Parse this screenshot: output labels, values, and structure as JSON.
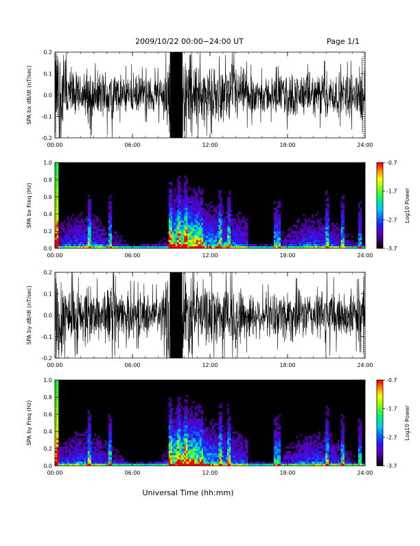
{
  "header": {
    "title": "2009/10/22  00:00−24:00 UT",
    "page": "Page 1/1"
  },
  "footer": {
    "xlabel": "Universal Time (hh:mm)"
  },
  "colors": {
    "trace": "#000000",
    "background": "#ffffff",
    "spectrogram_floor": "#000000",
    "colormap": [
      "#000000",
      "#3a0070",
      "#5a00c8",
      "#2020ff",
      "#0070ff",
      "#00c8ff",
      "#00e8a0",
      "#30ff30",
      "#a0ff00",
      "#ffff00",
      "#ff9000",
      "#ff0000"
    ]
  },
  "chart_data": [
    {
      "type": "line",
      "title": "",
      "ylabel": "SPA bx dB/dt (nT/sec)",
      "xlabel": "",
      "xlim": [
        "00:00",
        "24:00"
      ],
      "ylim": [
        -0.2,
        0.2
      ],
      "x_ticks": [
        "00:00",
        "06:00",
        "12:00",
        "18:00",
        "24:00"
      ],
      "y_ticks": [
        "-0.2",
        "-0.1",
        "0.0",
        "0.1",
        "0.2"
      ],
      "series": [
        {
          "x_hours": [
            0,
            0.5,
            1,
            2,
            2.7,
            3,
            4,
            4.3,
            5,
            6,
            7,
            8,
            8.5,
            8.9,
            9.5,
            10,
            10.5,
            11,
            12,
            13,
            14,
            15,
            16,
            17,
            17.5,
            18,
            19,
            20,
            21,
            22,
            23,
            24
          ],
          "amplitude": [
            0.2,
            0.2,
            0.12,
            0.07,
            0.12,
            0.08,
            0.1,
            0.12,
            0.07,
            0.08,
            0.07,
            0.07,
            0.1,
            0.2,
            0.2,
            0.2,
            0.18,
            0.12,
            0.1,
            0.1,
            0.12,
            0.08,
            0.07,
            0.07,
            0.08,
            0.09,
            0.08,
            0.08,
            0.09,
            0.08,
            0.09,
            0.1
          ]
        }
      ]
    },
    {
      "type": "heatmap",
      "title": "",
      "ylabel": "SPA bx Freq (Hz)",
      "xlabel": "",
      "xlim": [
        "00:00",
        "24:00"
      ],
      "ylim": [
        0.0,
        1.0
      ],
      "x_ticks": [
        "00:00",
        "06:00",
        "12:00",
        "18:00",
        "24:00"
      ],
      "y_ticks": [
        "0.0",
        "0.2",
        "0.4",
        "0.6",
        "0.8",
        "1.0"
      ],
      "colorbar_label": "Log10 Power",
      "colorbar_ticks": [
        "-0.7",
        "-1.7",
        "-2.7",
        "-3.7"
      ],
      "clim": [
        -3.7,
        -0.7
      ],
      "bursts_hours": [
        0.1,
        0.2,
        2.7,
        4.3,
        8.9,
        9.6,
        10.1,
        12.8,
        13.5,
        17.1,
        17.3,
        21.1,
        22.3,
        23.6
      ]
    },
    {
      "type": "line",
      "title": "",
      "ylabel": "SPA by dB/dt (nT/sec)",
      "xlabel": "",
      "xlim": [
        "00:00",
        "24:00"
      ],
      "ylim": [
        -0.2,
        0.2
      ],
      "x_ticks": [
        "00:00",
        "06:00",
        "12:00",
        "18:00",
        "24:00"
      ],
      "y_ticks": [
        "-0.2",
        "-0.1",
        "0.0",
        "0.1",
        "0.2"
      ],
      "series": [
        {
          "x_hours": [
            0,
            0.5,
            1,
            2,
            2.7,
            3,
            4,
            4.3,
            5,
            6,
            7,
            8,
            8.5,
            8.9,
            9.5,
            10,
            10.5,
            11,
            12,
            13,
            14,
            15,
            16,
            17,
            17.5,
            18,
            19,
            20,
            21,
            22,
            23,
            24
          ],
          "amplitude": [
            0.2,
            0.2,
            0.13,
            0.09,
            0.13,
            0.09,
            0.11,
            0.13,
            0.08,
            0.09,
            0.08,
            0.08,
            0.11,
            0.2,
            0.2,
            0.2,
            0.19,
            0.13,
            0.11,
            0.11,
            0.13,
            0.09,
            0.08,
            0.08,
            0.1,
            0.11,
            0.09,
            0.09,
            0.11,
            0.09,
            0.09,
            0.1
          ]
        }
      ]
    },
    {
      "type": "heatmap",
      "title": "",
      "ylabel": "SPA by Freq (Hz)",
      "xlabel": "",
      "xlim": [
        "00:00",
        "24:00"
      ],
      "ylim": [
        0.0,
        1.0
      ],
      "x_ticks": [
        "00:00",
        "06:00",
        "12:00",
        "18:00",
        "24:00"
      ],
      "y_ticks": [
        "0.0",
        "0.2",
        "0.4",
        "0.6",
        "0.8",
        "1.0"
      ],
      "colorbar_label": "Log10 Power",
      "colorbar_ticks": [
        "-0.7",
        "-1.7",
        "-2.7",
        "-3.7"
      ],
      "clim": [
        -3.7,
        -0.7
      ],
      "bursts_hours": [
        0.1,
        0.2,
        2.7,
        4.3,
        8.9,
        9.6,
        10.1,
        12.8,
        13.5,
        17.1,
        17.3,
        21.1,
        22.3,
        23.6
      ]
    }
  ]
}
